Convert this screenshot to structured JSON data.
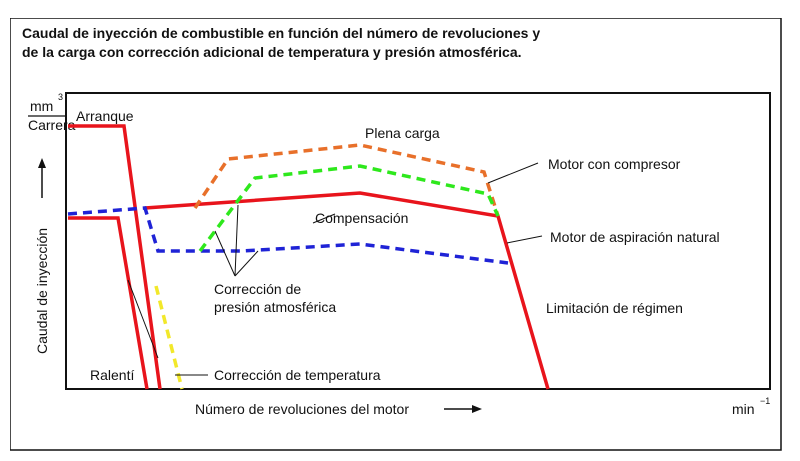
{
  "figure": {
    "title_line1": "Caudal de inyección de combustible en función del número de revoluciones y",
    "title_line2": "de la carga con corrección adicional de temperatura y presión atmosférica.",
    "y_unit_top": "mm",
    "y_unit_exp": "3",
    "y_unit_bottom": "Carrera",
    "y_axis_label": "Caudal de inyección",
    "x_axis_label": "Número de revoluciones del motor",
    "x_unit": "min",
    "x_unit_exp": "−1",
    "labels": {
      "arranque": "Arranque",
      "plena_carga": "Plena carga",
      "motor_compresor": "Motor con compresor",
      "compensacion": "Compensación",
      "motor_aspiracion": "Motor de aspiración natural",
      "correccion_presion_1": "Corrección de",
      "correccion_presion_2": "presión atmosférica",
      "limitacion": "Limitación de régimen",
      "ralenti": "Ralentí",
      "correccion_temp": "Corrección de temperatura"
    },
    "colors": {
      "natural_aspiration": "#e8141c",
      "compressor": "#e8702a",
      "full_load_compressor": "#2ee81c",
      "compensation_dashed": "#1f23d6",
      "temperature": "#f2e82a",
      "text": "#111111",
      "axis": "#111111"
    }
  },
  "chart_data": {
    "type": "line",
    "title": "Caudal de inyección de combustible en función del número de revoluciones y de la carga con corrección adicional de temperatura y presión atmosférica.",
    "xlabel": "Número de revoluciones del motor",
    "ylabel": "Caudal de inyección",
    "series": []
  }
}
